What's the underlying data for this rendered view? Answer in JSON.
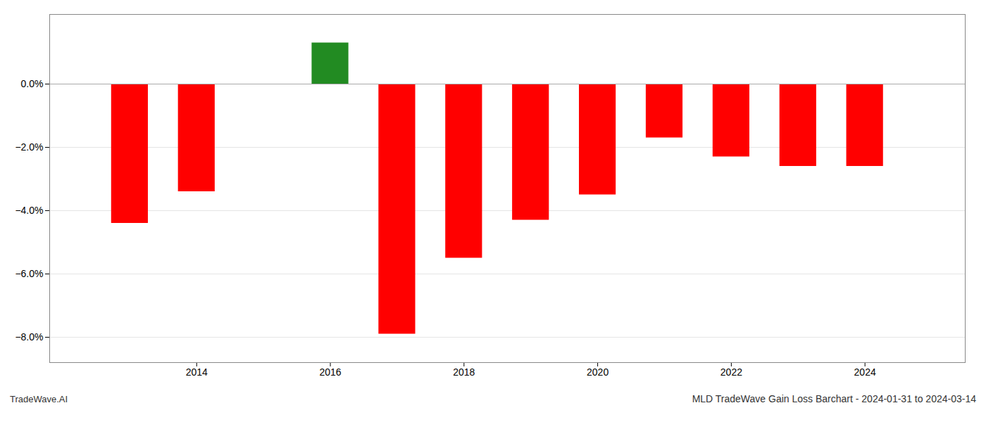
{
  "chart_data": {
    "type": "bar",
    "title": "MLD TradeWave Gain Loss Barchart - 2024-01-31 to 2024-03-14",
    "annotations": [
      "TradeWave.AI"
    ],
    "x": [
      2013,
      2014,
      2016,
      2017,
      2018,
      2019,
      2020,
      2021,
      2022,
      2023,
      2024
    ],
    "values": [
      -4.4,
      -3.4,
      1.3,
      -7.9,
      -5.5,
      -4.3,
      -3.5,
      -1.7,
      -2.3,
      -2.6,
      -2.6
    ],
    "colors": [
      "#ff0000",
      "#ff0000",
      "#228B22",
      "#ff0000",
      "#ff0000",
      "#ff0000",
      "#ff0000",
      "#ff0000",
      "#ff0000",
      "#ff0000",
      "#ff0000"
    ],
    "xlim": [
      2011.8,
      2025.5
    ],
    "xticks": [
      2014,
      2016,
      2018,
      2020,
      2022,
      2024
    ],
    "ylim": [
      -8.8,
      2.2
    ],
    "yticks": [
      {
        "value": 0.0,
        "label": "0.0%"
      },
      {
        "value": -2.0,
        "label": "−2.0%"
      },
      {
        "value": -4.0,
        "label": "−4.0%"
      },
      {
        "value": -6.0,
        "label": "−6.0%"
      },
      {
        "value": -8.0,
        "label": "−8.0%"
      }
    ],
    "grid": true
  }
}
